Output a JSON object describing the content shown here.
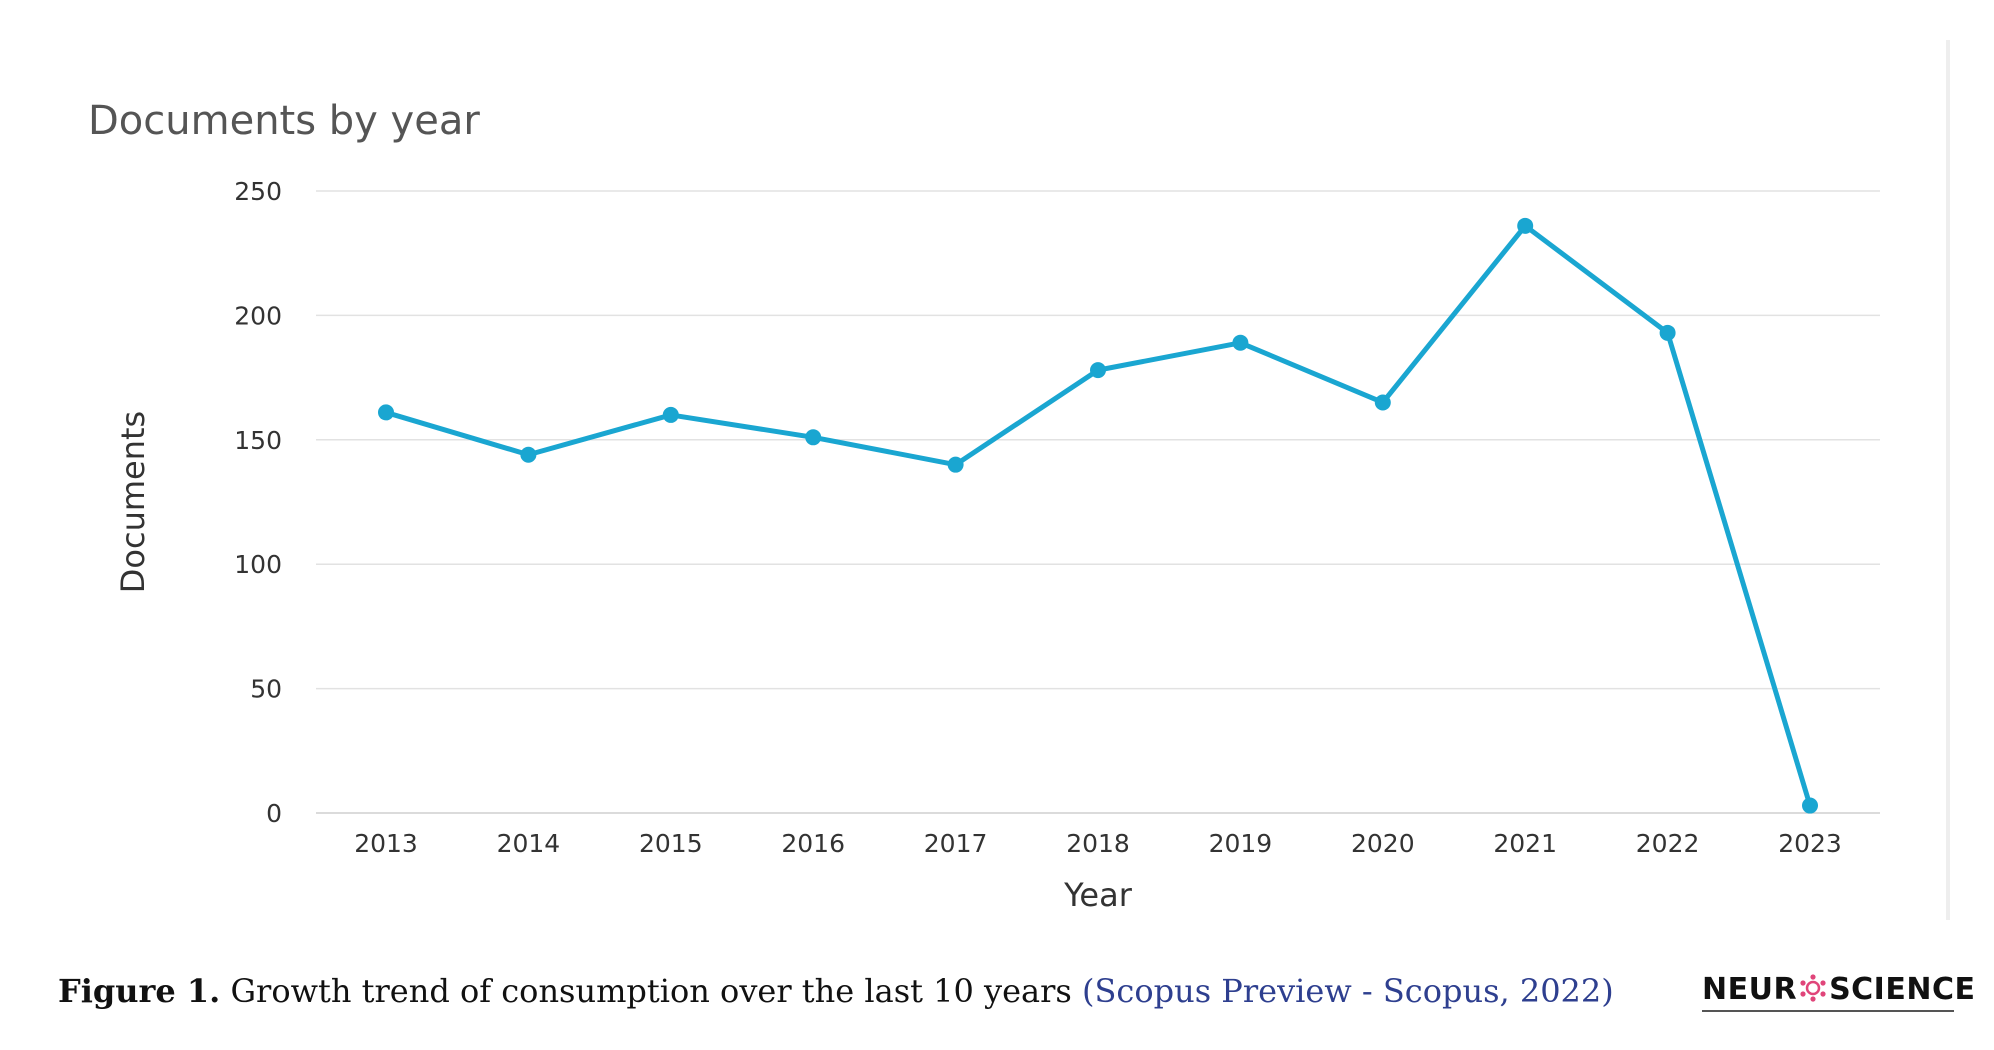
{
  "chart_data": {
    "type": "line",
    "title": "Documents by year",
    "xlabel": "Year",
    "ylabel": "Documents",
    "categories": [
      "2013",
      "2014",
      "2015",
      "2016",
      "2017",
      "2018",
      "2019",
      "2020",
      "2021",
      "2022",
      "2023"
    ],
    "series": [
      {
        "values": [
          161,
          144,
          160,
          151,
          140,
          178,
          189,
          165,
          236,
          193,
          3
        ]
      }
    ],
    "ylim": [
      0,
      250
    ],
    "yticks": [
      0,
      50,
      100,
      150,
      200,
      250
    ],
    "grid": true,
    "line_color": "#1aa6d1",
    "grid_color": "#e2e2e2"
  },
  "caption": {
    "label": "Figure 1.",
    "text": " Growth trend of consumption over the last 10 years ",
    "citation": "(Scopus Preview - Scopus, 2022)"
  },
  "logo": {
    "text_left": "NEUR",
    "text_right": "SCIENCE"
  }
}
